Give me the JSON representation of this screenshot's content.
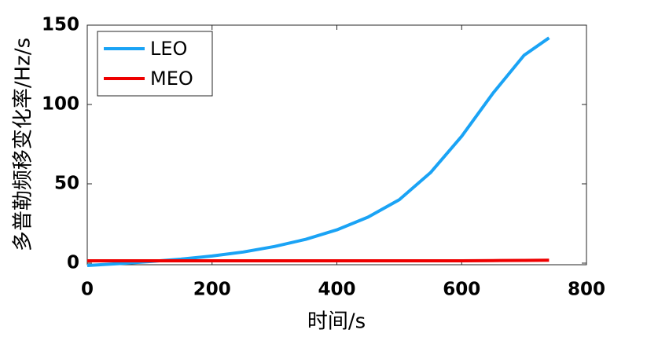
{
  "chart_data": {
    "type": "line",
    "xlabel": "时间/s",
    "ylabel": "多普勒频移变化率/Hz/s",
    "x": [
      0,
      50,
      100,
      150,
      200,
      250,
      300,
      350,
      400,
      450,
      500,
      550,
      600,
      650,
      700,
      740
    ],
    "series": [
      {
        "name": "LEO",
        "color": "#1aa3f5",
        "values": [
          -1.5,
          -0.3,
          1.0,
          2.5,
          4.5,
          7,
          10.5,
          15,
          21,
          29,
          40,
          57,
          80,
          107,
          131,
          142
        ]
      },
      {
        "name": "MEO",
        "color": "#ee0000",
        "values": [
          1.5,
          1.5,
          1.5,
          1.5,
          1.5,
          1.5,
          1.5,
          1.5,
          1.5,
          1.5,
          1.5,
          1.5,
          1.5,
          1.6,
          1.7,
          1.8
        ]
      }
    ],
    "xlim": [
      0,
      800
    ],
    "xticks": [
      0,
      200,
      400,
      600,
      800
    ],
    "ylim": [
      -1,
      150
    ],
    "yticks": [
      0,
      50,
      100,
      150
    ],
    "grid": false,
    "legend_loc": "upper left"
  }
}
